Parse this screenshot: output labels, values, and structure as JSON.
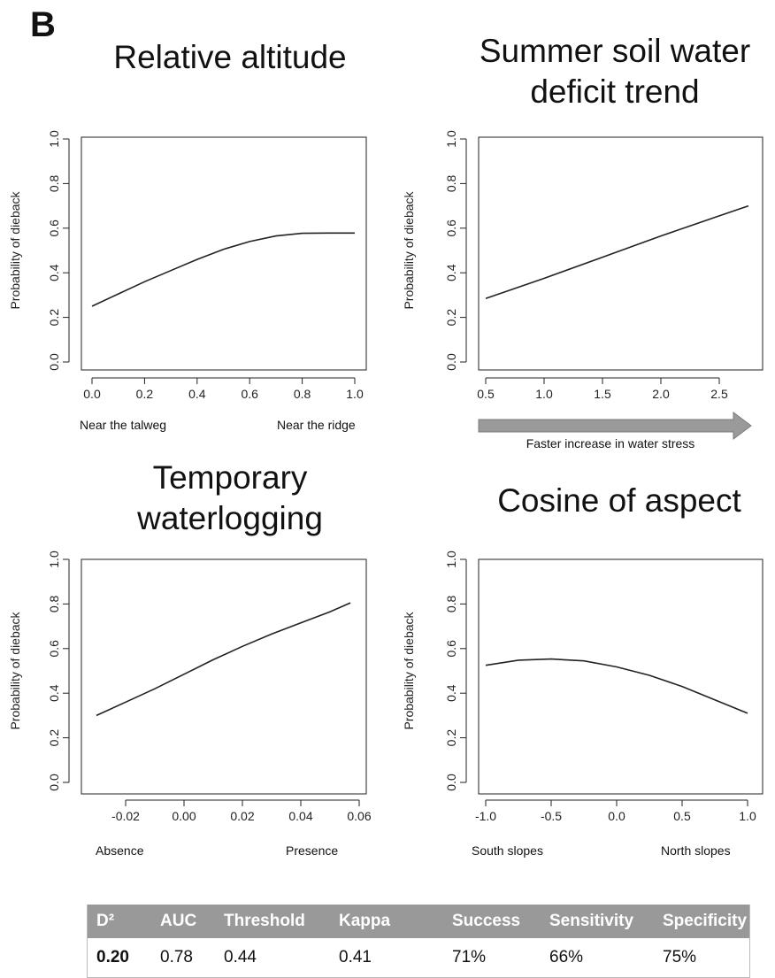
{
  "panel_label": "B",
  "chart_data": [
    {
      "type": "line",
      "title": "Relative altitude",
      "ylabel": "Probability of dieback",
      "ylim": [
        0,
        1
      ],
      "xlim": [
        0,
        1
      ],
      "x_ticks": [
        "0.0",
        "0.2",
        "0.4",
        "0.6",
        "0.8",
        "1.0"
      ],
      "y_ticks": [
        "0.0",
        "0.2",
        "0.4",
        "0.6",
        "0.8",
        "1.0"
      ],
      "x_left_label": "Near the talweg",
      "x_right_label": "Near the ridge",
      "x": [
        0.0,
        0.1,
        0.2,
        0.3,
        0.4,
        0.5,
        0.6,
        0.7,
        0.8,
        0.9,
        1.0
      ],
      "y": [
        0.25,
        0.305,
        0.36,
        0.41,
        0.46,
        0.505,
        0.54,
        0.565,
        0.577,
        0.578,
        0.578
      ]
    },
    {
      "type": "line",
      "title": "Summer soil water deficit trend",
      "ylabel": "Probability of dieback",
      "ylim": [
        0,
        1
      ],
      "xlim": [
        0.5,
        2.75
      ],
      "x_ticks": [
        "0.5",
        "1.0",
        "1.5",
        "2.0",
        "2.5"
      ],
      "y_ticks": [
        "0.0",
        "0.2",
        "0.4",
        "0.6",
        "0.8",
        "1.0"
      ],
      "arrow_label": "Faster increase in water stress",
      "x": [
        0.5,
        1.0,
        1.5,
        2.0,
        2.5,
        2.75
      ],
      "y": [
        0.285,
        0.375,
        0.47,
        0.565,
        0.655,
        0.7
      ]
    },
    {
      "type": "line",
      "title": "Temporary waterlogging",
      "ylabel": "Probability of dieback",
      "ylim": [
        0,
        1
      ],
      "xlim": [
        -0.03,
        0.057
      ],
      "x_ticks": [
        "-0.02",
        "0.00",
        "0.02",
        "0.04",
        "0.06"
      ],
      "y_ticks": [
        "0.0",
        "0.2",
        "0.4",
        "0.6",
        "0.8",
        "1.0"
      ],
      "x_left_label": "Absence",
      "x_right_label": "Presence",
      "x": [
        -0.03,
        -0.02,
        -0.01,
        0.0,
        0.01,
        0.02,
        0.03,
        0.04,
        0.05,
        0.057
      ],
      "y": [
        0.3,
        0.36,
        0.42,
        0.485,
        0.55,
        0.61,
        0.665,
        0.715,
        0.765,
        0.805
      ]
    },
    {
      "type": "line",
      "title": "Cosine of aspect",
      "ylabel": "Probability of dieback",
      "ylim": [
        0,
        1
      ],
      "xlim": [
        -1,
        1
      ],
      "x_ticks": [
        "-1.0",
        "-0.5",
        "0.0",
        "0.5",
        "1.0"
      ],
      "y_ticks": [
        "0.0",
        "0.2",
        "0.4",
        "0.6",
        "0.8",
        "1.0"
      ],
      "x_left_label": "South slopes",
      "x_right_label": "North slopes",
      "x": [
        -1.0,
        -0.75,
        -0.5,
        -0.25,
        0.0,
        0.25,
        0.5,
        0.75,
        1.0
      ],
      "y": [
        0.525,
        0.548,
        0.553,
        0.545,
        0.518,
        0.48,
        0.43,
        0.37,
        0.31
      ]
    }
  ],
  "stats_table": {
    "headers": [
      "D²",
      "AUC",
      "Threshold",
      "Kappa",
      "Success",
      "Sensitivity",
      "Specificity"
    ],
    "values": [
      "0.20",
      "0.78",
      "0.44",
      "0.41",
      "71%",
      "66%",
      "75%"
    ]
  },
  "colors": {
    "line": "#222222",
    "table_header": "#999999",
    "arrow": "#9a9a9a"
  }
}
